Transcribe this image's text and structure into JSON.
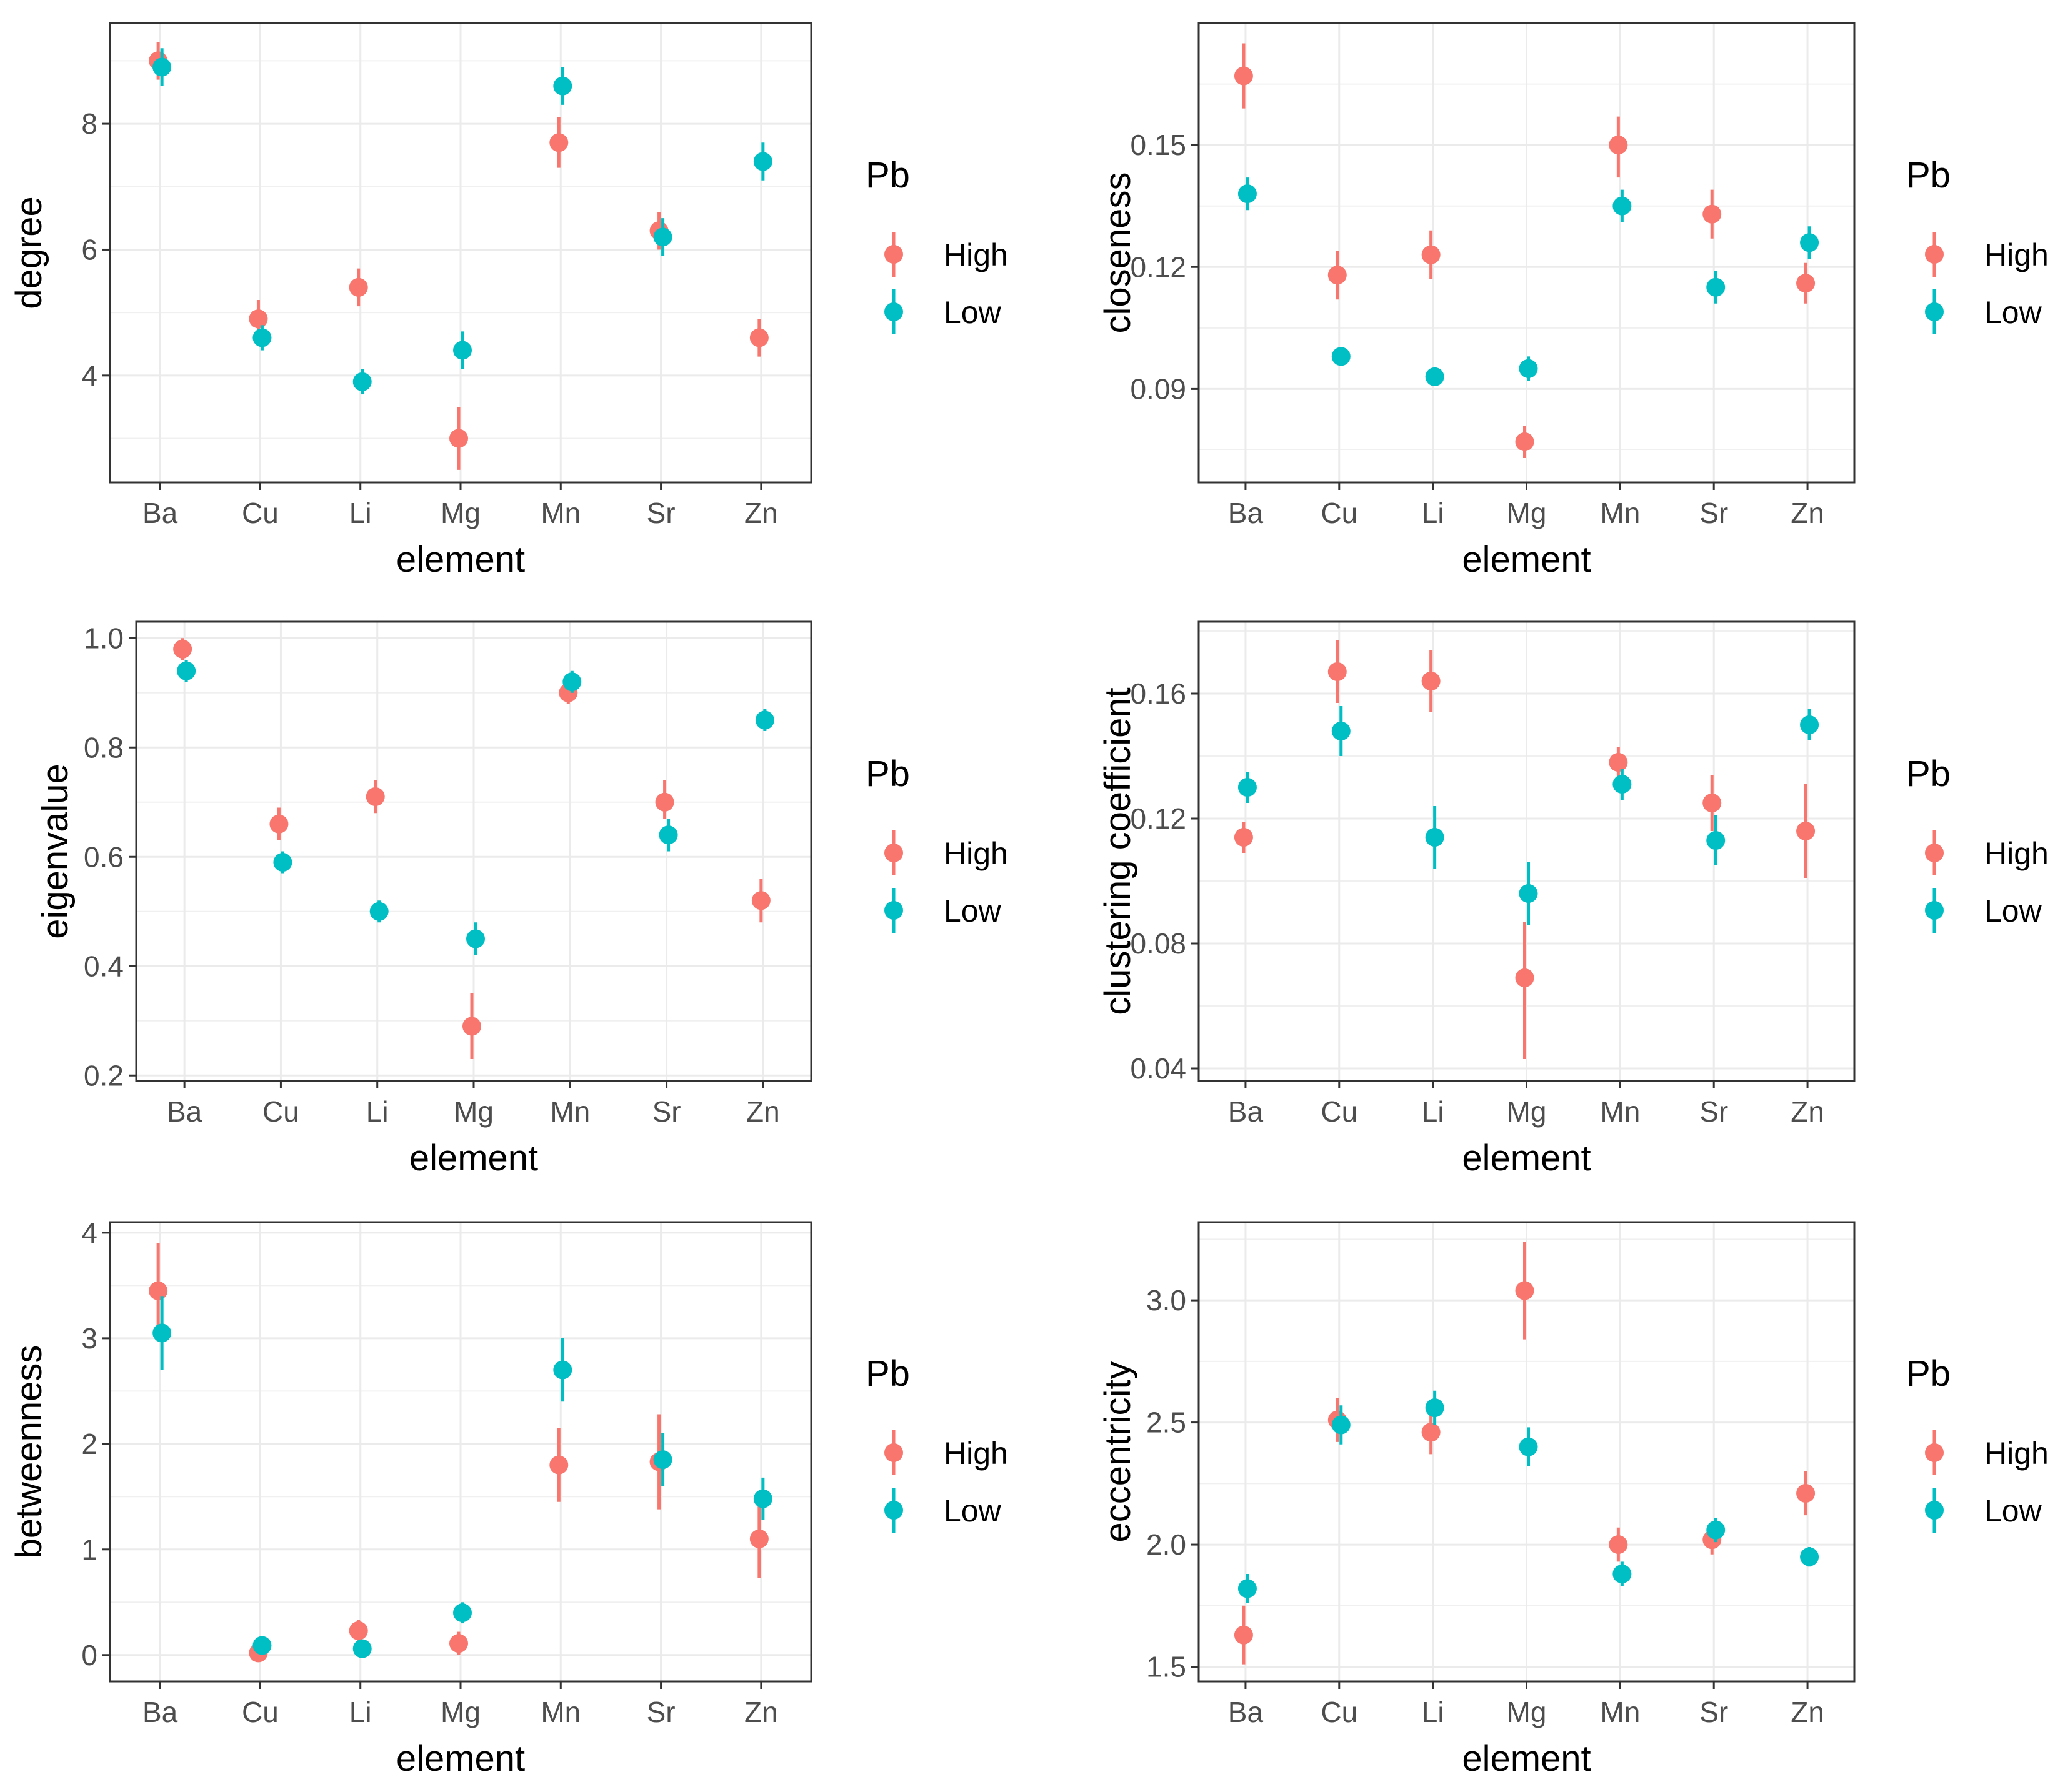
{
  "legend": {
    "title": "Pb",
    "entries": [
      {
        "name": "High",
        "color": "#F8766D"
      },
      {
        "name": "Low",
        "color": "#00BFC4"
      }
    ]
  },
  "chart_data": [
    {
      "type": "scatter",
      "xlabel": "element",
      "ylabel": "degree",
      "categories": [
        "Ba",
        "Cu",
        "Li",
        "Mg",
        "Mn",
        "Sr",
        "Zn"
      ],
      "ylim": [
        2.3,
        9.6
      ],
      "yticks": [
        "4",
        "6",
        "8"
      ],
      "ytick_values": [
        4,
        6,
        8
      ],
      "grid": true,
      "series": [
        {
          "name": "High",
          "color": "#F8766D",
          "values": [
            9.0,
            4.9,
            5.4,
            3.0,
            7.7,
            6.3,
            4.6
          ],
          "lower": [
            8.7,
            4.6,
            5.1,
            2.5,
            7.3,
            6.0,
            4.3
          ],
          "upper": [
            9.3,
            5.2,
            5.7,
            3.5,
            8.1,
            6.6,
            4.9
          ]
        },
        {
          "name": "Low",
          "color": "#00BFC4",
          "values": [
            8.9,
            4.6,
            3.9,
            4.4,
            8.6,
            6.2,
            7.4
          ],
          "lower": [
            8.6,
            4.4,
            3.7,
            4.1,
            8.3,
            5.9,
            7.1
          ],
          "upper": [
            9.2,
            4.8,
            4.1,
            4.7,
            8.9,
            6.5,
            7.7
          ]
        }
      ]
    },
    {
      "type": "scatter",
      "xlabel": "element",
      "ylabel": "closeness",
      "categories": [
        "Ba",
        "Cu",
        "Li",
        "Mg",
        "Mn",
        "Sr",
        "Zn"
      ],
      "ylim": [
        0.067,
        0.18
      ],
      "yticks": [
        "0.09",
        "0.12",
        "0.15"
      ],
      "ytick_values": [
        0.09,
        0.12,
        0.15
      ],
      "grid": true,
      "series": [
        {
          "name": "High",
          "color": "#F8766D",
          "values": [
            0.167,
            0.118,
            0.123,
            0.077,
            0.15,
            0.133,
            0.116
          ],
          "lower": [
            0.159,
            0.112,
            0.117,
            0.073,
            0.142,
            0.127,
            0.111
          ],
          "upper": [
            0.175,
            0.124,
            0.129,
            0.081,
            0.157,
            0.139,
            0.121
          ]
        },
        {
          "name": "Low",
          "color": "#00BFC4",
          "values": [
            0.138,
            0.098,
            0.093,
            0.095,
            0.135,
            0.115,
            0.126
          ],
          "lower": [
            0.134,
            0.096,
            0.091,
            0.092,
            0.131,
            0.111,
            0.122
          ],
          "upper": [
            0.142,
            0.1,
            0.095,
            0.098,
            0.139,
            0.119,
            0.13
          ]
        }
      ]
    },
    {
      "type": "scatter",
      "xlabel": "element",
      "ylabel": "eigenvalue",
      "categories": [
        "Ba",
        "Cu",
        "Li",
        "Mg",
        "Mn",
        "Sr",
        "Zn"
      ],
      "ylim": [
        0.19,
        1.03
      ],
      "yticks": [
        "0.2",
        "0.4",
        "0.6",
        "0.8",
        "1.0"
      ],
      "ytick_values": [
        0.2,
        0.4,
        0.6,
        0.8,
        1.0
      ],
      "grid": true,
      "series": [
        {
          "name": "High",
          "color": "#F8766D",
          "values": [
            0.98,
            0.66,
            0.71,
            0.29,
            0.9,
            0.7,
            0.52
          ],
          "lower": [
            0.96,
            0.63,
            0.68,
            0.23,
            0.88,
            0.67,
            0.48
          ],
          "upper": [
            1.0,
            0.69,
            0.74,
            0.35,
            0.92,
            0.74,
            0.56
          ]
        },
        {
          "name": "Low",
          "color": "#00BFC4",
          "values": [
            0.94,
            0.59,
            0.5,
            0.45,
            0.92,
            0.64,
            0.85
          ],
          "lower": [
            0.92,
            0.57,
            0.48,
            0.42,
            0.9,
            0.61,
            0.83
          ],
          "upper": [
            0.96,
            0.61,
            0.52,
            0.48,
            0.94,
            0.67,
            0.87
          ]
        }
      ]
    },
    {
      "type": "scatter",
      "xlabel": "element",
      "ylabel": "clustering coefficient",
      "categories": [
        "Ba",
        "Cu",
        "Li",
        "Mg",
        "Mn",
        "Sr",
        "Zn"
      ],
      "ylim": [
        0.036,
        0.183
      ],
      "yticks": [
        "0.04",
        "0.08",
        "0.12",
        "0.16"
      ],
      "ytick_values": [
        0.04,
        0.08,
        0.12,
        0.16
      ],
      "grid": true,
      "series": [
        {
          "name": "High",
          "color": "#F8766D",
          "values": [
            0.114,
            0.167,
            0.164,
            0.069,
            0.138,
            0.125,
            0.116
          ],
          "lower": [
            0.109,
            0.157,
            0.154,
            0.043,
            0.133,
            0.116,
            0.101
          ],
          "upper": [
            0.119,
            0.177,
            0.174,
            0.087,
            0.143,
            0.134,
            0.131
          ]
        },
        {
          "name": "Low",
          "color": "#00BFC4",
          "values": [
            0.13,
            0.148,
            0.114,
            0.096,
            0.131,
            0.113,
            0.15
          ],
          "lower": [
            0.125,
            0.14,
            0.104,
            0.086,
            0.126,
            0.105,
            0.145
          ],
          "upper": [
            0.135,
            0.156,
            0.124,
            0.106,
            0.136,
            0.121,
            0.155
          ]
        }
      ]
    },
    {
      "type": "scatter",
      "xlabel": "element",
      "ylabel": "betweenness",
      "categories": [
        "Ba",
        "Cu",
        "Li",
        "Mg",
        "Mn",
        "Sr",
        "Zn"
      ],
      "ylim": [
        -0.25,
        4.1
      ],
      "yticks": [
        "0",
        "1",
        "2",
        "3",
        "4"
      ],
      "ytick_values": [
        0,
        1,
        2,
        3,
        4
      ],
      "grid": true,
      "series": [
        {
          "name": "High",
          "color": "#F8766D",
          "values": [
            3.45,
            0.02,
            0.23,
            0.11,
            1.8,
            1.83,
            1.1
          ],
          "lower": [
            3.0,
            -0.05,
            0.13,
            0.0,
            1.45,
            1.38,
            0.73
          ],
          "upper": [
            3.9,
            0.09,
            0.33,
            0.22,
            2.15,
            2.28,
            1.47
          ]
        },
        {
          "name": "Low",
          "color": "#00BFC4",
          "values": [
            3.05,
            0.09,
            0.06,
            0.4,
            2.7,
            1.85,
            1.48
          ],
          "lower": [
            2.7,
            0.02,
            0.01,
            0.3,
            2.4,
            1.6,
            1.28
          ],
          "upper": [
            3.4,
            0.16,
            0.11,
            0.5,
            3.0,
            2.1,
            1.68
          ]
        }
      ]
    },
    {
      "type": "scatter",
      "xlabel": "element",
      "ylabel": "eccentricity",
      "categories": [
        "Ba",
        "Cu",
        "Li",
        "Mg",
        "Mn",
        "Sr",
        "Zn"
      ],
      "ylim": [
        1.44,
        3.32
      ],
      "yticks": [
        "1.5",
        "2.0",
        "2.5",
        "3.0"
      ],
      "ytick_values": [
        1.5,
        2.0,
        2.5,
        3.0
      ],
      "grid": true,
      "series": [
        {
          "name": "High",
          "color": "#F8766D",
          "values": [
            1.63,
            2.51,
            2.46,
            3.04,
            2.0,
            2.02,
            2.21
          ],
          "lower": [
            1.51,
            2.42,
            2.37,
            2.84,
            1.93,
            1.96,
            2.12
          ],
          "upper": [
            1.75,
            2.6,
            2.55,
            3.24,
            2.07,
            2.08,
            2.3
          ]
        },
        {
          "name": "Low",
          "color": "#00BFC4",
          "values": [
            1.82,
            2.49,
            2.56,
            2.4,
            1.88,
            2.06,
            1.95
          ],
          "lower": [
            1.76,
            2.41,
            2.49,
            2.32,
            1.83,
            2.01,
            1.91
          ],
          "upper": [
            1.88,
            2.57,
            2.63,
            2.48,
            1.93,
            2.11,
            1.99
          ]
        }
      ]
    }
  ]
}
